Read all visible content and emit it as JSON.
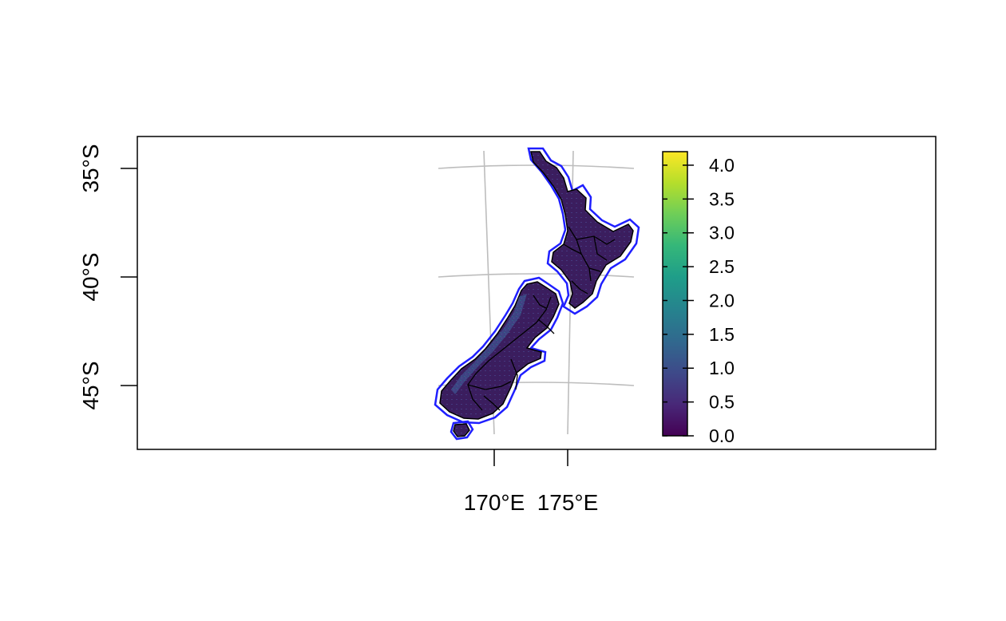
{
  "map": {
    "x_axis": {
      "ticks": [
        {
          "value": 170,
          "label": "170°E"
        },
        {
          "value": 175,
          "label": "175°E"
        }
      ]
    },
    "y_axis": {
      "ticks": [
        {
          "value": -35,
          "label": "35°S"
        },
        {
          "value": -40,
          "label": "40°S"
        },
        {
          "value": -45,
          "label": "45°S"
        }
      ]
    },
    "legend": {
      "min": 0.0,
      "max": 4.2,
      "placement": "right-of-map",
      "ticks": [
        "0.0",
        "0.5",
        "1.0",
        "1.5",
        "2.0",
        "2.5",
        "3.0",
        "3.5",
        "4.0"
      ],
      "colormap": "viridis"
    },
    "colors": {
      "land_fill": "#3b1d5e",
      "outline_buffer": "#1f1fff",
      "region_borders": "#000000",
      "graticule": "#bdbdbd",
      "frame": "#000000",
      "viridis": [
        "#440154",
        "#482878",
        "#3e4989",
        "#31688e",
        "#26828e",
        "#1f9e89",
        "#35b779",
        "#6ece58",
        "#b5de2b",
        "#fde725"
      ]
    }
  }
}
